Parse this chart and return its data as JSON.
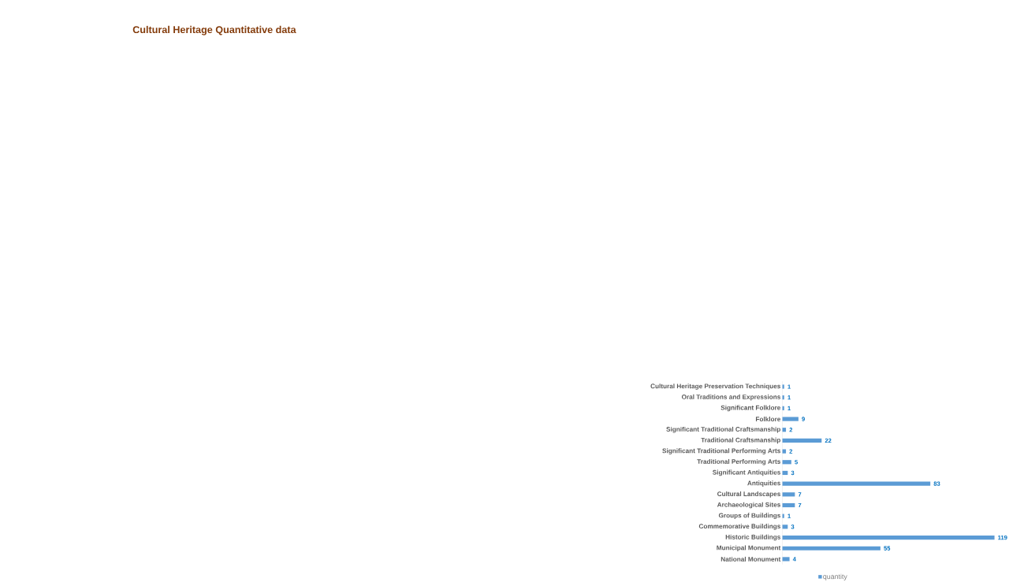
{
  "chart_data": {
    "type": "bar",
    "orientation": "horizontal",
    "title": "Cultural Heritage Quantitative data",
    "categories": [
      "Cultural Heritage Preservation Techniques",
      "Oral Traditions and Expressions",
      "Significant Folklore",
      "Folklore",
      "Significant Traditional Craftsmanship",
      "Traditional Craftsmanship",
      "Significant Traditional Performing Arts",
      "Traditional Performing Arts",
      "Significant Antiquities",
      "Antiquities",
      "Cultural Landscapes",
      "Archaeological Sites",
      "Groups of Buildings",
      "Commemorative Buildings",
      "Historic Buildings",
      "Municipal Monument",
      "National Monument"
    ],
    "series": [
      {
        "name": "quantity",
        "color": "#5b9bd5",
        "values": [
          1,
          1,
          1,
          9,
          2,
          22,
          2,
          5,
          3,
          83,
          7,
          7,
          1,
          3,
          119,
          55,
          4
        ]
      }
    ],
    "data_labels": true,
    "legend": "bottom"
  }
}
